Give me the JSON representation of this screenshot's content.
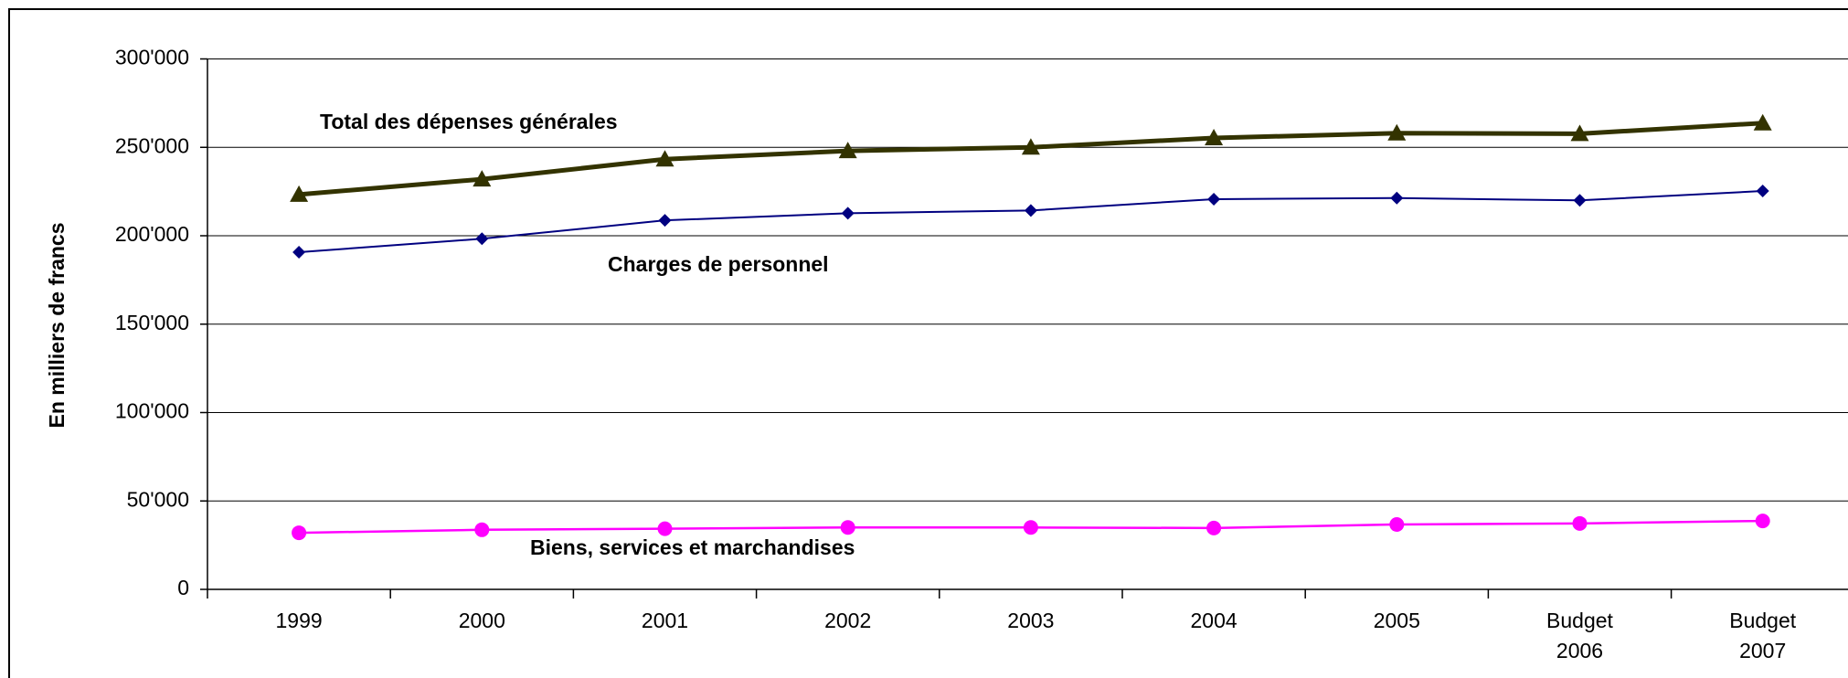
{
  "chart_data": {
    "type": "line",
    "ylabel": "En milliers de francs",
    "categories": [
      "1999",
      "2000",
      "2001",
      "2002",
      "2003",
      "2004",
      "2005",
      "Budget 2006",
      "Budget 2007"
    ],
    "ylim": [
      0,
      300000
    ],
    "yticks": [
      0,
      {
        "value": 50000,
        "label": "50'000"
      },
      {
        "value": 100000,
        "label": "100'000"
      },
      {
        "value": 150000,
        "label": "150'000"
      },
      {
        "value": 200000,
        "label": "200'000"
      },
      {
        "value": 250000,
        "label": "250'000"
      },
      {
        "value": 300000,
        "label": "300'000"
      }
    ],
    "grid": true,
    "series": [
      {
        "name": "Total des dépenses générales",
        "color": "#333300",
        "marker": "triangle",
        "values": [
          223300,
          232000,
          243300,
          248000,
          250000,
          255300,
          258000,
          257700,
          263700
        ]
      },
      {
        "name": "Charges de personnel",
        "color": "#000080",
        "marker": "diamond",
        "values": [
          190700,
          198300,
          208700,
          212700,
          214300,
          220700,
          221300,
          220000,
          225300
        ]
      },
      {
        "name": "Biens, services et marchandises",
        "color": "#ff00ff",
        "marker": "circle",
        "values": [
          32000,
          33700,
          34300,
          35000,
          35000,
          34700,
          36700,
          37300,
          38700
        ]
      }
    ]
  }
}
